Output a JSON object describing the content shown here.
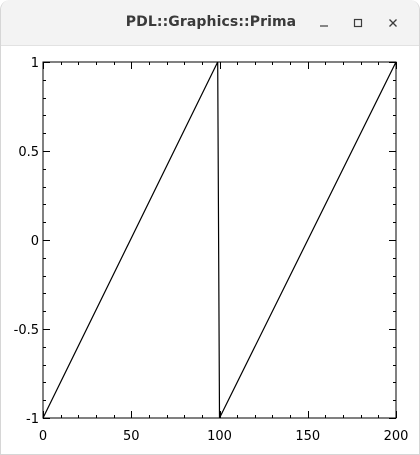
{
  "window": {
    "title": "PDL::Graphics::Prima",
    "controls": {
      "minimize_icon": "minimize-icon",
      "maximize_icon": "maximize-icon",
      "close_icon": "close-icon"
    }
  },
  "chart_data": {
    "type": "line",
    "title": "",
    "xlabel": "",
    "ylabel": "",
    "xlim": [
      0,
      200
    ],
    "ylim": [
      -1,
      1
    ],
    "x_ticks": [
      0,
      50,
      100,
      150,
      200
    ],
    "x_tick_labels": [
      "0",
      "50",
      "100",
      "150",
      "200"
    ],
    "y_ticks": [
      -1,
      -0.5,
      0,
      0.5,
      1
    ],
    "y_tick_labels": [
      "-1",
      "-0.5",
      "0",
      "0.5",
      "1"
    ],
    "grid": false,
    "series": [
      {
        "color": "#000000",
        "x": [
          0,
          99,
          100,
          200
        ],
        "y": [
          -1,
          1,
          -1,
          1
        ]
      }
    ]
  }
}
